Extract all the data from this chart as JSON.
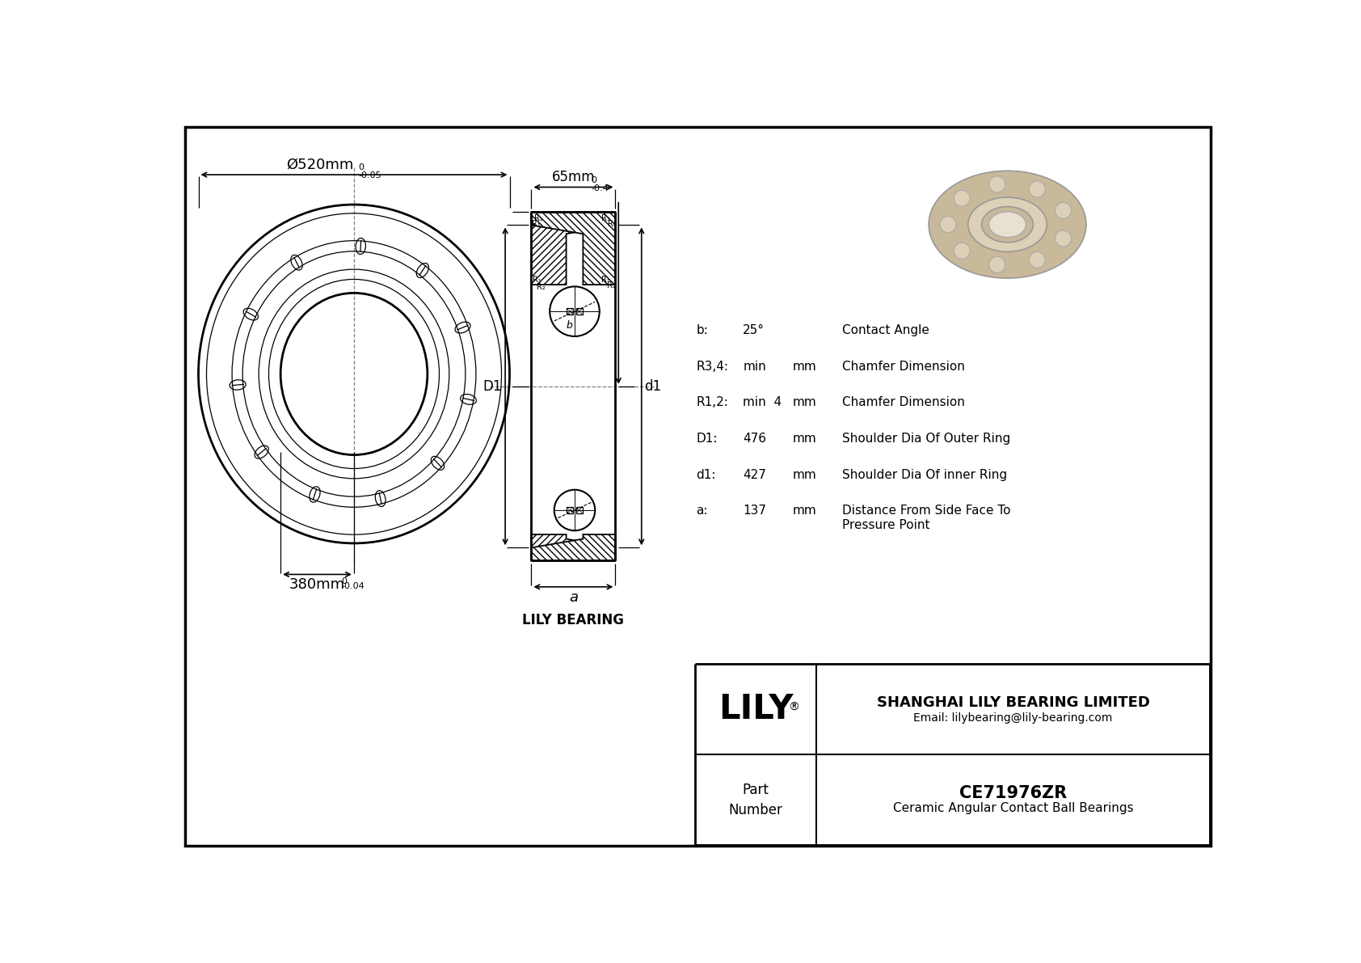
{
  "bg_color": "#ffffff",
  "line_color": "#000000",
  "params": [
    {
      "sym": "b:",
      "val": "25°",
      "unit": "",
      "desc": "Contact Angle"
    },
    {
      "sym": "R3,4:",
      "val": "min",
      "unit": "mm",
      "desc": "Chamfer Dimension"
    },
    {
      "sym": "R1,2:",
      "val": "min  4",
      "unit": "mm",
      "desc": "Chamfer Dimension"
    },
    {
      "sym": "D1:",
      "val": "476",
      "unit": "mm",
      "desc": "Shoulder Dia Of Outer Ring"
    },
    {
      "sym": "d1:",
      "val": "427",
      "unit": "mm",
      "desc": "Shoulder Dia Of inner Ring"
    },
    {
      "sym": "a:",
      "val": "137",
      "unit": "mm",
      "desc": "Distance From Side Face To\nPressure Point"
    }
  ],
  "company": "SHANGHAI LILY BEARING LIMITED",
  "email": "Email: lilybearing@lily-bearing.com",
  "part_number": "CE71976ZR",
  "part_type": "Ceramic Angular Contact Ball Bearings",
  "logo_text": "LILY",
  "part_label": "Part\nNumber",
  "lily_bearing_label": "LILY BEARING",
  "outer_diam_lbl": "Ø520mm",
  "outer_tol_top": "0",
  "outer_tol_bot": "-0.05",
  "inner_diam_lbl": "380mm",
  "inner_tol_top": "0",
  "inner_tol_bot": "-0.04",
  "width_lbl": "65mm",
  "width_tol_top": "0",
  "width_tol_bot": "-0.4",
  "dim_a_lbl": "a",
  "dim_D1_lbl": "D1",
  "dim_d1_lbl": "d1"
}
